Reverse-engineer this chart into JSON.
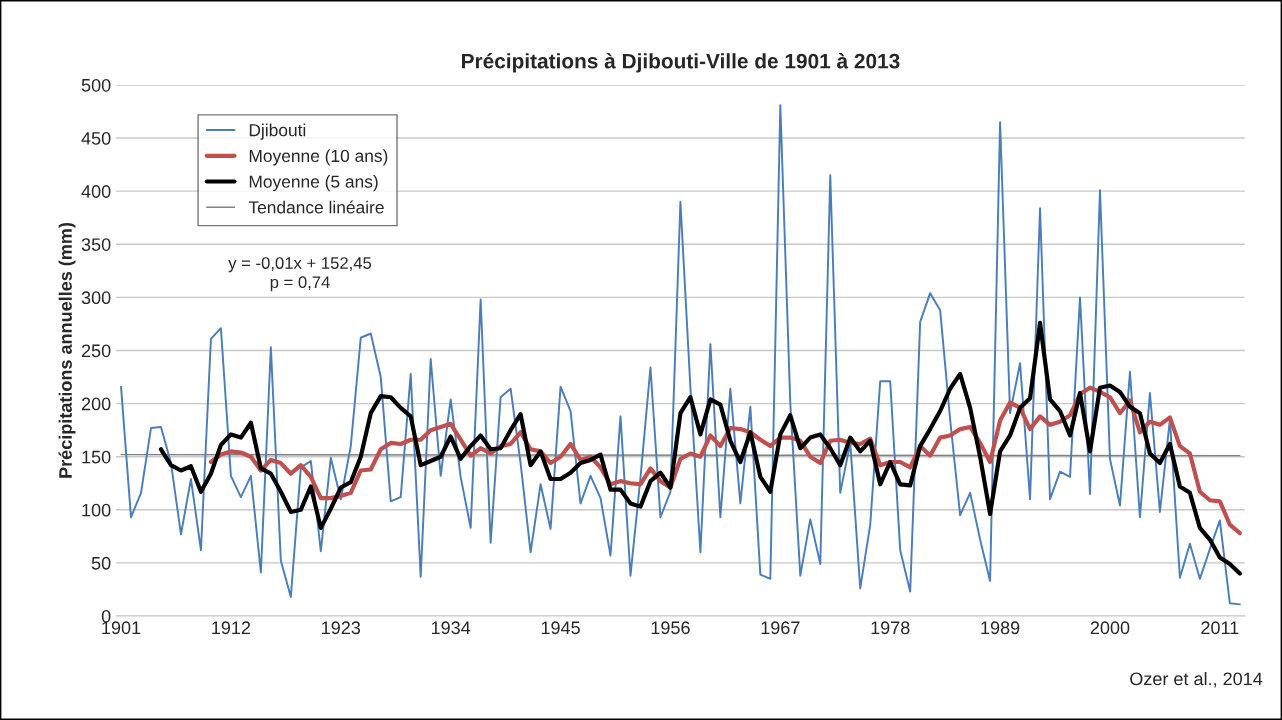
{
  "chart_data": {
    "type": "line",
    "title": "Précipitations à Djibouti-Ville de 1901 à 2013",
    "ylabel": "Précipitations annuelles (mm)",
    "x": [
      1901,
      1902,
      1903,
      1904,
      1905,
      1906,
      1907,
      1908,
      1909,
      1910,
      1911,
      1912,
      1913,
      1914,
      1915,
      1916,
      1917,
      1918,
      1919,
      1920,
      1921,
      1922,
      1923,
      1924,
      1925,
      1926,
      1927,
      1928,
      1929,
      1930,
      1931,
      1932,
      1933,
      1934,
      1935,
      1936,
      1937,
      1938,
      1939,
      1940,
      1941,
      1942,
      1943,
      1944,
      1945,
      1946,
      1947,
      1948,
      1949,
      1950,
      1951,
      1952,
      1953,
      1954,
      1955,
      1956,
      1957,
      1958,
      1959,
      1960,
      1961,
      1962,
      1963,
      1964,
      1965,
      1966,
      1967,
      1968,
      1969,
      1970,
      1971,
      1972,
      1973,
      1974,
      1975,
      1976,
      1977,
      1978,
      1979,
      1980,
      1981,
      1982,
      1983,
      1984,
      1985,
      1986,
      1987,
      1988,
      1989,
      1990,
      1991,
      1992,
      1993,
      1994,
      1995,
      1996,
      1997,
      1998,
      1999,
      2000,
      2001,
      2002,
      2003,
      2004,
      2005,
      2006,
      2007,
      2008,
      2009,
      2010,
      2011,
      2012,
      2013
    ],
    "series": [
      {
        "name": "Djibouti",
        "color": "#4a7ebb",
        "values": [
          216,
          93,
          116,
          177,
          178,
          144,
          77,
          129,
          62,
          261,
          271,
          132,
          112,
          132,
          41,
          253,
          52,
          18,
          140,
          146,
          61,
          149,
          110,
          160,
          262,
          266,
          225,
          108,
          112,
          228,
          37,
          242,
          132,
          204,
          131,
          83,
          298,
          69,
          206,
          214,
          144,
          60,
          124,
          82,
          216,
          193,
          106,
          132,
          111,
          57,
          188,
          38,
          130,
          234,
          93,
          117,
          390,
          215,
          60,
          256,
          93,
          214,
          106,
          197,
          39,
          35,
          481,
          200,
          38,
          91,
          49,
          415,
          116,
          163,
          26,
          86,
          221,
          221,
          62,
          23,
          277,
          304,
          288,
          185,
          95,
          116,
          72,
          33,
          465,
          191,
          238,
          110,
          384,
          110,
          136,
          131,
          300,
          115,
          401,
          148,
          104,
          230,
          93,
          210,
          98,
          185,
          36,
          68,
          35,
          63,
          90,
          12,
          11
        ]
      },
      {
        "name": "Moyenne (10 ans)",
        "color": "#c0504d",
        "values": [
          null,
          null,
          null,
          null,
          null,
          null,
          null,
          null,
          null,
          145,
          152,
          155,
          154,
          150,
          137,
          147,
          144,
          134,
          142,
          131,
          111,
          111,
          113,
          116,
          137,
          138,
          157,
          163,
          162,
          166,
          166,
          175,
          178,
          181,
          166,
          151,
          158,
          153,
          160,
          162,
          173,
          157,
          155,
          144,
          150,
          162,
          147,
          150,
          140,
          124,
          127,
          125,
          124,
          139,
          127,
          121,
          148,
          153,
          150,
          170,
          160,
          177,
          176,
          173,
          166,
          160,
          168,
          168,
          165,
          150,
          144,
          165,
          166,
          163,
          162,
          167,
          142,
          145,
          145,
          140,
          160,
          151,
          168,
          170,
          176,
          178,
          163,
          145,
          184,
          201,
          196,
          176,
          188,
          180,
          183,
          189,
          209,
          215,
          211,
          206,
          191,
          203,
          173,
          183,
          180,
          187,
          160,
          153,
          117,
          109,
          108,
          86,
          78
        ]
      },
      {
        "name": "Moyenne (5 ans)",
        "color": "#000000",
        "values": [
          null,
          null,
          null,
          null,
          157,
          142,
          137,
          141,
          117,
          134,
          161,
          171,
          168,
          182,
          139,
          134,
          117,
          98,
          100,
          122,
          83,
          101,
          121,
          126,
          150,
          191,
          207,
          206,
          196,
          188,
          142,
          146,
          150,
          169,
          148,
          160,
          170,
          157,
          158,
          175,
          190,
          142,
          155,
          129,
          129,
          135,
          144,
          147,
          152,
          119,
          119,
          106,
          103,
          127,
          135,
          121,
          191,
          206,
          171,
          204,
          199,
          165,
          145,
          173,
          131,
          117,
          171,
          189,
          158,
          168,
          171,
          158,
          142,
          168,
          155,
          165,
          124,
          145,
          124,
          123,
          160,
          176,
          193,
          214,
          228,
          196,
          150,
          96,
          155,
          170,
          196,
          205,
          276,
          204,
          193,
          170,
          210,
          155,
          215,
          217,
          211,
          197,
          191,
          153,
          144,
          162,
          122,
          116,
          83,
          72,
          55,
          49,
          40
        ]
      },
      {
        "name": "Tendance linéaire",
        "color": "#808080",
        "x": [
          1901,
          2013
        ],
        "values": [
          152,
          151
        ]
      }
    ],
    "xlim": [
      1900.5,
      2013.5
    ],
    "xticks": [
      1901,
      1912,
      1923,
      1934,
      1945,
      1956,
      1967,
      1978,
      1989,
      2000,
      2011
    ],
    "ylim": [
      0,
      500
    ],
    "yticks": [
      0,
      50,
      100,
      150,
      200,
      250,
      300,
      350,
      400,
      450,
      500
    ],
    "grid": "y",
    "legend": "top left",
    "annotations": [
      "y = -0,01x + 152,45",
      "p = 0,74",
      "Ozer et al., 2014"
    ]
  }
}
